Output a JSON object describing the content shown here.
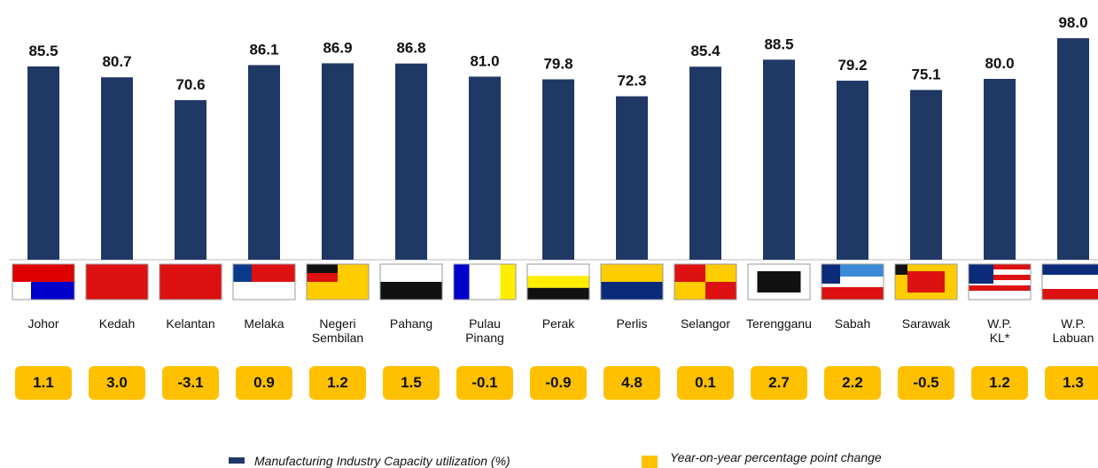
{
  "chart_data": {
    "type": "bar",
    "categories": [
      "Johor",
      "Kedah",
      "Kelantan",
      "Melaka",
      "Negeri\nSembilan",
      "Pahang",
      "Pulau\nPinang",
      "Perak",
      "Perlis",
      "Selangor",
      "Terengganu",
      "Sabah",
      "Sarawak",
      "W.P.\nKL*",
      "W.P.\nLabuan"
    ],
    "ylim": [
      0,
      100
    ],
    "series": [
      {
        "name": "Manufacturing Industry Capacity utilization (%)",
        "color": "#203864",
        "values": [
          85.5,
          80.7,
          70.6,
          86.1,
          86.9,
          86.8,
          81.0,
          79.8,
          72.3,
          85.4,
          88.5,
          79.2,
          75.1,
          80.0,
          98.0
        ],
        "value_labels": [
          "85.5",
          "80.7",
          "70.6",
          "86.1",
          "86.9",
          "86.8",
          "81.0",
          "79.8",
          "72.3",
          "85.4",
          "88.5",
          "79.2",
          "75.1",
          "80.0",
          "98.0"
        ]
      },
      {
        "name": "Year-on-year percentage point change",
        "color": "#ffc000",
        "values": [
          1.1,
          3.0,
          -3.1,
          0.9,
          1.2,
          1.5,
          -0.1,
          -0.9,
          4.8,
          0.1,
          2.7,
          2.2,
          -0.5,
          1.2,
          1.3
        ],
        "value_labels": [
          "1.1",
          "3.0",
          "-3.1",
          "0.9",
          "1.2",
          "1.5",
          "-0.1",
          "-0.9",
          "4.8",
          "0.1",
          "2.7",
          "2.2",
          "-0.5",
          "1.2",
          "1.3"
        ]
      }
    ]
  }
}
